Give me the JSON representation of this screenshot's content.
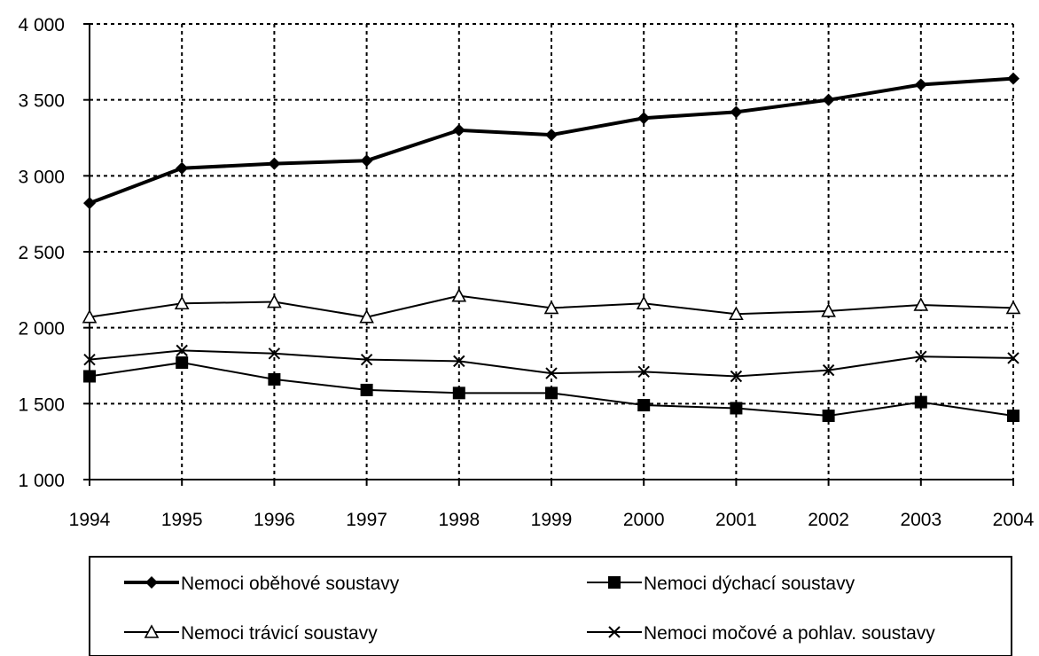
{
  "chart_data": {
    "type": "line",
    "title": "",
    "xlabel": "",
    "ylabel": "",
    "categories": [
      "1994",
      "1995",
      "1996",
      "1997",
      "1998",
      "1999",
      "2000",
      "2001",
      "2002",
      "2003",
      "2004"
    ],
    "ylim": [
      1000,
      4000
    ],
    "yticks": [
      1000,
      1500,
      2000,
      2500,
      3000,
      3500,
      4000
    ],
    "ytick_labels": [
      "1 000",
      "1 500",
      "2 000",
      "2 500",
      "3 000",
      "3 500",
      "4 000"
    ],
    "grid": true,
    "legend_position": "bottom",
    "series": [
      {
        "name": "Nemoci oběhové soustavy",
        "marker": "diamond",
        "color": "#000000",
        "values": [
          2820,
          3050,
          3080,
          3100,
          3300,
          3270,
          3380,
          3420,
          3500,
          3600,
          3640
        ]
      },
      {
        "name": "Nemoci dýchací soustavy",
        "marker": "square",
        "color": "#000000",
        "values": [
          1680,
          1770,
          1660,
          1590,
          1570,
          1570,
          1490,
          1470,
          1420,
          1510,
          1420
        ]
      },
      {
        "name": "Nemoci trávicí soustavy",
        "marker": "triangle",
        "color": "#000000",
        "values": [
          2070,
          2160,
          2170,
          2070,
          2210,
          2130,
          2160,
          2090,
          2110,
          2150,
          2130
        ]
      },
      {
        "name": "Nemoci močové a pohlav. soustavy",
        "marker": "cross",
        "color": "#000000",
        "values": [
          1790,
          1850,
          1830,
          1790,
          1780,
          1700,
          1710,
          1680,
          1720,
          1810,
          1800
        ]
      }
    ]
  }
}
